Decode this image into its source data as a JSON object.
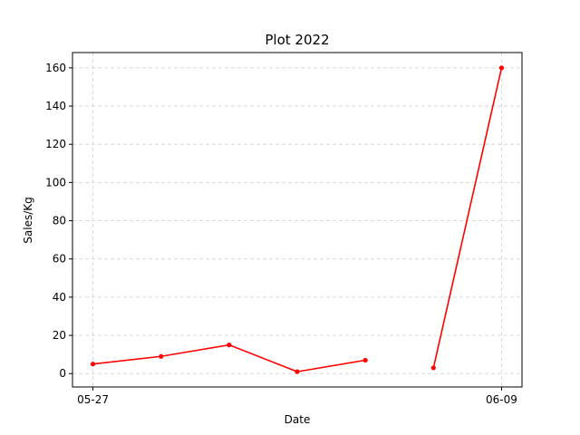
{
  "chart_data": {
    "type": "line",
    "title": "Plot 2022",
    "xlabel": "Date",
    "ylabel": "Sales/Kg",
    "x_tick_labels": [
      "05-27",
      "06-09"
    ],
    "x_tick_values": [
      0,
      6
    ],
    "xlim": [
      -0.3,
      6.3
    ],
    "ylim": [
      -7,
      168
    ],
    "y_ticks": [
      0,
      20,
      40,
      60,
      80,
      100,
      120,
      140,
      160
    ],
    "grid": true,
    "segments": [
      {
        "x": [
          0,
          1,
          2,
          3,
          4
        ],
        "y": [
          5,
          9,
          15,
          1,
          7
        ]
      },
      {
        "x": [
          5,
          6
        ],
        "y": [
          3,
          160
        ]
      }
    ],
    "color": "#ff0000"
  }
}
